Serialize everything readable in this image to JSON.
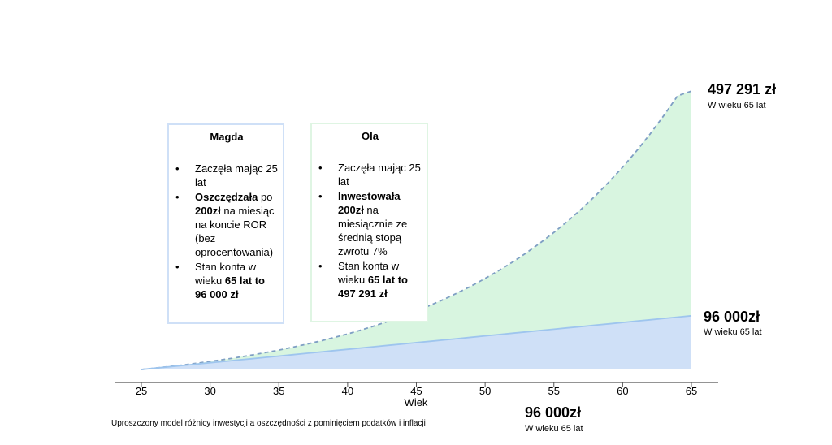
{
  "chart_data": {
    "type": "area",
    "xlabel": "Wiek",
    "x": [
      25,
      26,
      27,
      28,
      29,
      30,
      31,
      32,
      33,
      34,
      35,
      36,
      37,
      38,
      39,
      40,
      41,
      42,
      43,
      44,
      45,
      46,
      47,
      48,
      49,
      50,
      51,
      52,
      53,
      54,
      55,
      56,
      57,
      58,
      59,
      60,
      61,
      62,
      63,
      64,
      65
    ],
    "xticks": [
      25,
      30,
      35,
      40,
      45,
      50,
      55,
      60,
      65
    ],
    "xlim": [
      25,
      65
    ],
    "ylim": [
      0,
      560000
    ],
    "grid": false,
    "series": [
      {
        "name": "Ola",
        "color": "#d8f5e0",
        "line_color": "#7f9fc4",
        "line_style": "dashed",
        "values": [
          0,
          2486,
          5152,
          8011,
          11077,
          14364,
          17889,
          21669,
          25722,
          30069,
          34730,
          39728,
          45087,
          50834,
          56997,
          63605,
          70691,
          78289,
          86437,
          95174,
          104543,
          114589,
          125362,
          136914,
          149300,
          162583,
          176826,
          192099,
          208475,
          226036,
          244867,
          265059,
          286711,
          309929,
          334825,
          361522,
          390149,
          420846,
          453763,
          489059,
          497291
        ]
      },
      {
        "name": "Magda",
        "color": "#cfe0f7",
        "line_color": "#9ec5ee",
        "line_style": "solid",
        "values": [
          0,
          2400,
          4800,
          7200,
          9600,
          12000,
          14400,
          16800,
          19200,
          21600,
          24000,
          26400,
          28800,
          31200,
          33600,
          36000,
          38400,
          40800,
          43200,
          45600,
          48000,
          50400,
          52800,
          55200,
          57600,
          60000,
          62400,
          64800,
          67200,
          69600,
          72000,
          74400,
          76800,
          79200,
          81600,
          84000,
          86400,
          88800,
          91200,
          93600,
          96000
        ]
      }
    ]
  },
  "magda": {
    "title": "Magda",
    "b1": "Zaczęła mając 25 lat",
    "b2_bold1": "Oszczędzała",
    "b2_t1": " po ",
    "b2_bold2": "200zł",
    "b2_t2": "  na miesiąc na koncie ROR (bez oprocentowania)",
    "b3_t": "Stan konta w wieku ",
    "b3_bold": "65 lat to 96 000 zł"
  },
  "ola": {
    "title": "Ola",
    "b1": "Zaczęła mając 25 lat",
    "b2_bold1": "Inwestowała 200zł",
    "b2_t": "  na miesiącznie ze średnią stopą zwrotu 7%",
    "b3_t": "Stan konta w wieku ",
    "b3_bold": "65 lat to 497 291 zł"
  },
  "labels": {
    "ola_value": "497 291 zł",
    "ola_sub": "W wieku 65 lat",
    "magda_value": "96 000zł",
    "magda_sub": "W wieku 65 lat",
    "bottom_value": "96 000zł",
    "bottom_sub": "W wieku 65 lat"
  },
  "footnote": "Uproszczony model różnicy inwestycji a oszczędności z pominięciem podatków i inflacji"
}
